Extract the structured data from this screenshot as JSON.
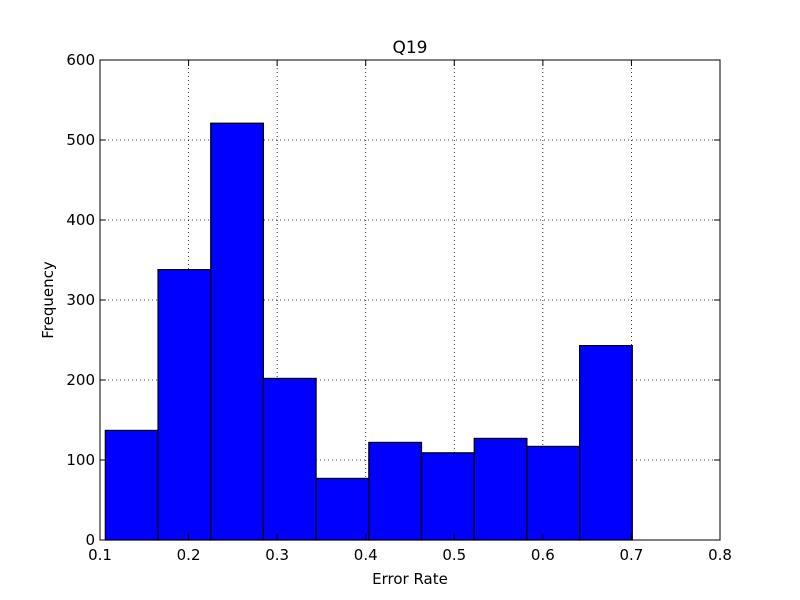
{
  "chart_data": {
    "type": "bar",
    "title": "Q19",
    "xlabel": "Error Rate",
    "ylabel": "Frequency",
    "xlim": [
      0.1,
      0.8
    ],
    "ylim": [
      0,
      600
    ],
    "xticks": [
      "0.1",
      "0.2",
      "0.3",
      "0.4",
      "0.5",
      "0.6",
      "0.7",
      "0.8"
    ],
    "yticks": [
      "0",
      "100",
      "200",
      "300",
      "400",
      "500",
      "600"
    ],
    "grid": true,
    "bar_color": "#0000ff",
    "bin_edges": [
      0.106,
      0.1655,
      0.225,
      0.2845,
      0.344,
      0.4035,
      0.463,
      0.5225,
      0.582,
      0.6415,
      0.701
    ],
    "values": [
      137,
      338,
      521,
      202,
      77,
      122,
      109,
      127,
      117,
      243
    ]
  }
}
